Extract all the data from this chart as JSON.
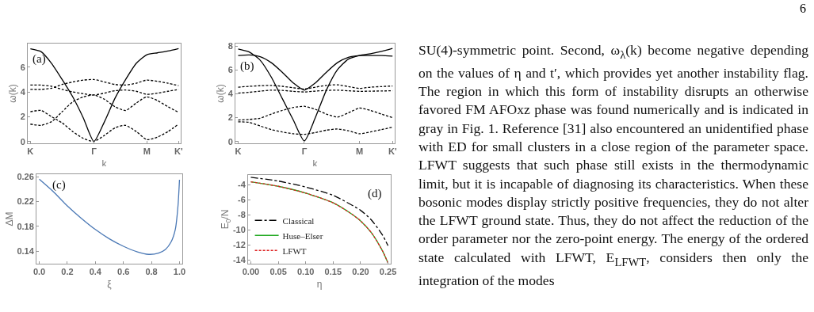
{
  "chart_data": [
    {
      "type": "line",
      "xlabel": "k",
      "ylabel": "ω(k)",
      "annotations": [
        "(a)"
      ],
      "categories": [
        "K",
        null,
        null,
        null,
        null,
        null,
        "Γ",
        null,
        null,
        null,
        null,
        "M",
        null,
        null,
        "K'"
      ],
      "ylim": [
        -0.15,
        7.9
      ],
      "yticks": [
        0,
        2,
        4,
        6
      ],
      "grid": false,
      "legend": false,
      "series": [
        {
          "color": "#000000",
          "line_style": "solid",
          "values": [
            7.48,
            7.25,
            6.3,
            5.0,
            3.6,
            1.9,
            0.0,
            1.6,
            3.5,
            5.0,
            6.3,
            7.0,
            7.15,
            7.3,
            7.5
          ]
        },
        {
          "color": "#000000",
          "line_style": "dashed",
          "values": [
            4.55,
            4.55,
            4.45,
            4.2,
            4.0,
            3.85,
            3.75,
            3.9,
            4.1,
            4.15,
            4.05,
            3.8,
            3.9,
            4.05,
            4.2
          ]
        },
        {
          "color": "#000000",
          "line_style": "dashed",
          "values": [
            4.2,
            4.2,
            4.3,
            4.6,
            4.8,
            4.95,
            5.0,
            4.8,
            4.6,
            4.55,
            4.7,
            4.95,
            4.85,
            4.7,
            4.5
          ]
        },
        {
          "color": "#000000",
          "line_style": "dashed",
          "values": [
            2.4,
            2.5,
            2.0,
            1.5,
            0.8,
            0.25,
            0.0,
            0.5,
            1.1,
            1.3,
            0.8,
            0.15,
            0.35,
            0.8,
            1.4
          ]
        },
        {
          "color": "#000000",
          "line_style": "dashed",
          "values": [
            1.4,
            1.3,
            1.6,
            2.4,
            3.2,
            3.6,
            3.75,
            3.4,
            2.8,
            2.5,
            3.1,
            3.6,
            3.3,
            2.8,
            2.35
          ]
        }
      ]
    },
    {
      "type": "line",
      "xlabel": "k",
      "ylabel": "ω(k)",
      "annotations": [
        "(b)"
      ],
      "categories": [
        "K",
        null,
        null,
        null,
        null,
        null,
        "Γ",
        null,
        null,
        null,
        null,
        "M",
        null,
        null,
        "K'"
      ],
      "ylim": [
        -0.15,
        8.2
      ],
      "yticks": [
        0,
        2,
        4,
        6,
        8
      ],
      "grid": false,
      "legend": false,
      "series": [
        {
          "color": "#000000",
          "line_style": "solid",
          "values": [
            7.75,
            7.5,
            6.8,
            5.4,
            3.6,
            1.8,
            0.05,
            2.0,
            4.3,
            6.0,
            6.9,
            7.2,
            7.35,
            7.55,
            7.8
          ]
        },
        {
          "color": "#000000",
          "line_style": "solid",
          "values": [
            7.2,
            7.25,
            7.1,
            6.6,
            5.8,
            4.9,
            4.3,
            4.9,
            5.8,
            6.6,
            7.05,
            7.2,
            7.2,
            7.2,
            7.15
          ]
        },
        {
          "color": "#000000",
          "line_style": "dashed",
          "values": [
            4.55,
            4.62,
            4.67,
            4.7,
            4.62,
            4.5,
            4.4,
            4.55,
            4.7,
            4.75,
            4.6,
            4.45,
            4.55,
            4.6,
            4.65
          ]
        },
        {
          "color": "#000000",
          "line_style": "dashed",
          "values": [
            4.05,
            4.12,
            4.22,
            4.3,
            4.28,
            4.2,
            4.15,
            4.22,
            4.28,
            4.3,
            4.25,
            4.2,
            4.22,
            4.23,
            4.25
          ]
        },
        {
          "color": "#000000",
          "line_style": "dashed",
          "values": [
            1.8,
            1.85,
            1.95,
            2.3,
            2.6,
            2.85,
            2.95,
            2.7,
            2.3,
            2.05,
            2.4,
            2.8,
            2.6,
            2.3,
            2.0
          ]
        },
        {
          "color": "#000000",
          "line_style": "dashed",
          "values": [
            1.65,
            1.6,
            1.3,
            1.0,
            0.8,
            0.65,
            0.6,
            0.75,
            0.95,
            1.05,
            0.9,
            0.65,
            0.8,
            1.0,
            1.2
          ]
        }
      ]
    },
    {
      "type": "line",
      "xlabel": "ξ",
      "ylabel": "ΔM",
      "annotations": [
        "(c)"
      ],
      "xlim": [
        -0.02,
        1.02
      ],
      "xticks": [
        {
          "value": 0,
          "label": "0.0"
        },
        {
          "value": 0.2,
          "label": "0.2"
        },
        {
          "value": 0.4,
          "label": "0.4"
        },
        {
          "value": 0.6,
          "label": "0.6"
        },
        {
          "value": 0.8,
          "label": "0.8"
        },
        {
          "value": 1,
          "label": "1.0"
        }
      ],
      "ylim": [
        0.12,
        0.264
      ],
      "yticks": [
        0.14,
        0.18,
        0.22,
        0.26
      ],
      "grid": false,
      "legend": false,
      "series": [
        {
          "color": "#4a78b5",
          "line_style": "solid",
          "x": [
            0,
            0.1,
            0.2,
            0.3,
            0.4,
            0.5,
            0.6,
            0.7,
            0.78,
            0.85,
            0.9,
            0.94,
            0.97,
            0.99,
            1.0
          ],
          "values": [
            0.256,
            0.236,
            0.213,
            0.193,
            0.175,
            0.16,
            0.148,
            0.139,
            0.135,
            0.137,
            0.143,
            0.155,
            0.175,
            0.215,
            0.255
          ]
        }
      ]
    },
    {
      "type": "line",
      "xlabel": "η",
      "ylabel": "E$_{0}$/N",
      "annotations": [
        "(d)"
      ],
      "xlim": [
        -0.005,
        0.255
      ],
      "xticks": [
        {
          "value": 0,
          "label": "0.00"
        },
        {
          "value": 0.05,
          "label": "0.05"
        },
        {
          "value": 0.1,
          "label": "0.10"
        },
        {
          "value": 0.15,
          "label": "0.15"
        },
        {
          "value": 0.2,
          "label": "0.20"
        },
        {
          "value": 0.25,
          "label": "0.25"
        }
      ],
      "ylim": [
        -14.5,
        -2.7
      ],
      "yticks": [
        -14,
        -12,
        -10,
        -8,
        -6,
        -4
      ],
      "grid": false,
      "legend": "bottom left",
      "series": [
        {
          "name": "Classical",
          "color": "#000000",
          "line_style": "dashdot",
          "x": [
            0,
            0.05,
            0.1,
            0.15,
            0.2,
            0.22,
            0.24,
            0.25
          ],
          "values": [
            -3.0,
            -3.5,
            -4.3,
            -5.4,
            -7.4,
            -8.7,
            -10.7,
            -12.1
          ]
        },
        {
          "name": "Huse–Elser",
          "color": "#22aa22",
          "line_style": "solid",
          "x": [
            0,
            0.05,
            0.1,
            0.15,
            0.18,
            0.2,
            0.22,
            0.24,
            0.25
          ],
          "values": [
            -3.6,
            -4.2,
            -5.1,
            -6.4,
            -7.7,
            -8.8,
            -10.4,
            -12.8,
            -14.4
          ]
        },
        {
          "name": "LFWT",
          "color": "#dd2222",
          "line_style": "dashed",
          "x": [
            0,
            0.05,
            0.1,
            0.15,
            0.18,
            0.2,
            0.22,
            0.24,
            0.25
          ],
          "values": [
            -3.6,
            -4.2,
            -5.1,
            -6.4,
            -7.7,
            -8.8,
            -10.4,
            -12.8,
            -14.4
          ]
        }
      ]
    },
    {
      "type": "other",
      "annotations": [
        "6",
        "SU(4)-symmetric point. Second, ω$_{λ}$(k) become negative depending on the values of η and t′, which provides yet another instability flag. The region in which this form of instability disrupts an otherwise favored FM AFOxz phase was found numerically and is indicated in gray in Fig. 1. Reference [31] also encountered an unidentified phase with ED for small clusters in a close region of the parameter space. LFWT suggests that such phase still exists in the thermodynamic limit, but it is incapable of diagnosing its characteristics. When these bosonic modes display strictly positive frequencies, they do not alter the LFWT ground state. Thus, they do not affect the reduction of the order parameter nor the zero-point energy. The energy of the ordered state calculated with LFWT, E$_{LFWT}$, considers then only the integration of the modes"
      ]
    }
  ]
}
